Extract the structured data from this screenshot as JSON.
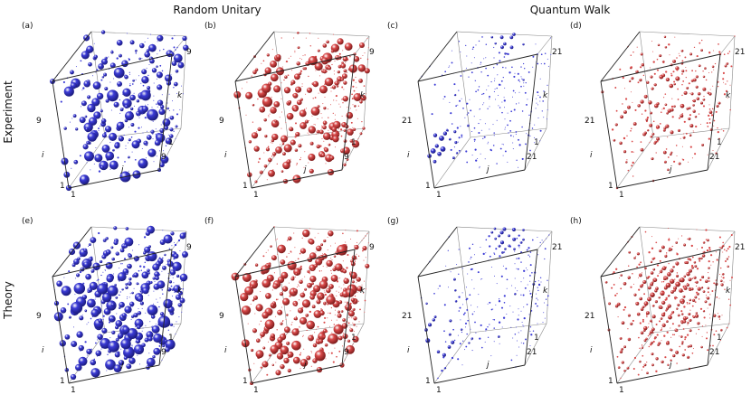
{
  "columns": {
    "random_unitary": "Random Unitary",
    "quantum_walk": "Quantum Walk"
  },
  "rows": {
    "experiment": "Experiment",
    "theory": "Theory"
  },
  "colors": {
    "blue": "#3b3bd6",
    "red": "#d94a4a"
  },
  "axes": {
    "i": "i",
    "j": "j",
    "k": "k",
    "one": "1"
  },
  "panels": [
    {
      "id": "a",
      "label": "(a)",
      "max": "9",
      "color": "blue",
      "pattern": "uniform",
      "density": 0.45,
      "scale": 1.0
    },
    {
      "id": "b",
      "label": "(b)",
      "max": "9",
      "color": "red",
      "pattern": "uniform",
      "density": 0.55,
      "scale": 0.9
    },
    {
      "id": "c",
      "label": "(c)",
      "max": "21",
      "color": "blue",
      "pattern": "corner",
      "density": 0.3,
      "scale": 0.6
    },
    {
      "id": "d",
      "label": "(d)",
      "max": "21",
      "color": "red",
      "pattern": "spread",
      "density": 0.45,
      "scale": 0.7
    },
    {
      "id": "e",
      "label": "(e)",
      "max": "9",
      "color": "blue",
      "pattern": "uniform",
      "density": 0.6,
      "scale": 1.1
    },
    {
      "id": "f",
      "label": "(f)",
      "max": "9",
      "color": "red",
      "pattern": "uniform",
      "density": 0.65,
      "scale": 0.95
    },
    {
      "id": "g",
      "label": "(g)",
      "max": "21",
      "color": "blue",
      "pattern": "corner",
      "density": 0.55,
      "scale": 0.65
    },
    {
      "id": "h",
      "label": "(h)",
      "max": "21",
      "color": "red",
      "pattern": "spread",
      "density": 0.7,
      "scale": 0.75
    }
  ]
}
